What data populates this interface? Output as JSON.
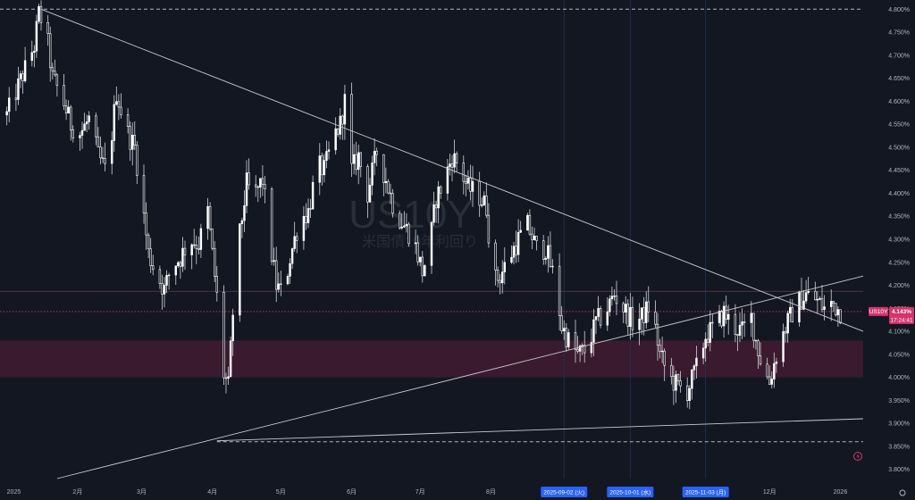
{
  "chart_data": {
    "type": "candlestick",
    "symbol": "US10Y",
    "name": "米国債10年利回り",
    "current_price": "4.143%",
    "countdown": "17:24:41",
    "y_axis": {
      "ylim": [
        3.78,
        4.82
      ],
      "ticks": [
        "4.800%",
        "4.750%",
        "4.700%",
        "4.650%",
        "4.600%",
        "4.550%",
        "4.500%",
        "4.450%",
        "4.400%",
        "4.350%",
        "4.300%",
        "4.250%",
        "4.200%",
        "4.150%",
        "4.100%",
        "4.050%",
        "4.000%",
        "3.950%",
        "3.900%",
        "3.850%",
        "3.800%"
      ]
    },
    "x_axis": {
      "labels": [
        {
          "label": "2025",
          "day": 0
        },
        {
          "label": "2月",
          "day": 31
        },
        {
          "label": "3月",
          "day": 59
        },
        {
          "label": "4月",
          "day": 90
        },
        {
          "label": "5月",
          "day": 120
        },
        {
          "label": "6月",
          "day": 151
        },
        {
          "label": "7月",
          "day": 181
        },
        {
          "label": "8月",
          "day": 212
        },
        {
          "label": "12月",
          "day": 334
        },
        {
          "label": "2026",
          "day": 365
        }
      ],
      "highlighted": [
        {
          "label": "2025-09-02 (火)",
          "day": 244
        },
        {
          "label": "2025-10-01 (水)",
          "day": 273
        },
        {
          "label": "2025-11-03 (月)",
          "day": 306
        }
      ]
    },
    "close_series": [
      [
        0,
        4.57
      ],
      [
        4,
        4.62
      ],
      [
        8,
        4.67
      ],
      [
        12,
        4.72
      ],
      [
        14,
        4.79
      ],
      [
        17,
        4.76
      ],
      [
        20,
        4.65
      ],
      [
        24,
        4.61
      ],
      [
        28,
        4.55
      ],
      [
        32,
        4.53
      ],
      [
        36,
        4.56
      ],
      [
        40,
        4.48
      ],
      [
        44,
        4.44
      ],
      [
        48,
        4.62
      ],
      [
        52,
        4.54
      ],
      [
        56,
        4.5
      ],
      [
        59,
        4.39
      ],
      [
        62,
        4.27
      ],
      [
        65,
        4.23
      ],
      [
        69,
        4.19
      ],
      [
        72,
        4.24
      ],
      [
        76,
        4.26
      ],
      [
        80,
        4.3
      ],
      [
        84,
        4.29
      ],
      [
        88,
        4.36
      ],
      [
        91,
        4.22
      ],
      [
        93,
        4.13
      ],
      [
        94,
        4.02
      ],
      [
        97,
        3.98
      ],
      [
        99,
        4.14
      ],
      [
        102,
        4.31
      ],
      [
        105,
        4.42
      ],
      [
        108,
        4.39
      ],
      [
        112,
        4.43
      ],
      [
        115,
        4.3
      ],
      [
        118,
        4.2
      ],
      [
        121,
        4.18
      ],
      [
        124,
        4.26
      ],
      [
        128,
        4.34
      ],
      [
        132,
        4.36
      ],
      [
        136,
        4.46
      ],
      [
        139,
        4.45
      ],
      [
        143,
        4.52
      ],
      [
        146,
        4.55
      ],
      [
        148,
        4.6
      ],
      [
        151,
        4.45
      ],
      [
        154,
        4.48
      ],
      [
        158,
        4.4
      ],
      [
        162,
        4.49
      ],
      [
        166,
        4.43
      ],
      [
        170,
        4.36
      ],
      [
        174,
        4.33
      ],
      [
        178,
        4.3
      ],
      [
        182,
        4.23
      ],
      [
        185,
        4.28
      ],
      [
        188,
        4.39
      ],
      [
        191,
        4.42
      ],
      [
        195,
        4.48
      ],
      [
        198,
        4.46
      ],
      [
        202,
        4.41
      ],
      [
        206,
        4.4
      ],
      [
        210,
        4.37
      ],
      [
        213,
        4.21
      ],
      [
        216,
        4.22
      ],
      [
        220,
        4.26
      ],
      [
        224,
        4.3
      ],
      [
        228,
        4.33
      ],
      [
        232,
        4.28
      ],
      [
        236,
        4.28
      ],
      [
        240,
        4.21
      ],
      [
        243,
        4.11
      ],
      [
        246,
        4.08
      ],
      [
        250,
        4.05
      ],
      [
        254,
        4.06
      ],
      [
        258,
        4.12
      ],
      [
        262,
        4.14
      ],
      [
        266,
        4.18
      ],
      [
        270,
        4.15
      ],
      [
        274,
        4.12
      ],
      [
        278,
        4.13
      ],
      [
        282,
        4.16
      ],
      [
        286,
        4.05
      ],
      [
        290,
        4.0
      ],
      [
        294,
        3.98
      ],
      [
        298,
        3.97
      ],
      [
        302,
        4.02
      ],
      [
        306,
        4.09
      ],
      [
        310,
        4.11
      ],
      [
        314,
        4.14
      ],
      [
        318,
        4.11
      ],
      [
        322,
        4.1
      ],
      [
        326,
        4.13
      ],
      [
        328,
        4.08
      ],
      [
        331,
        4.02
      ],
      [
        334,
        3.99
      ],
      [
        338,
        4.07
      ],
      [
        342,
        4.12
      ],
      [
        346,
        4.16
      ],
      [
        350,
        4.18
      ],
      [
        354,
        4.17
      ],
      [
        358,
        4.15
      ],
      [
        362,
        4.16
      ],
      [
        365,
        4.143
      ]
    ],
    "horizontal_levels": [
      {
        "y": 4.8,
        "style": "dashed",
        "color": "#b2b5be"
      },
      {
        "y": 4.187,
        "style": "solid",
        "color": "#6b3a52"
      },
      {
        "y": 4.143,
        "style": "dotted",
        "color": "#d6336c"
      },
      {
        "y": 3.86,
        "style": "dashed",
        "color": "#b2b5be"
      }
    ],
    "zone": {
      "y_top": 4.08,
      "y_bottom": 4.0,
      "color": "#3a1a2e"
    },
    "trendlines": [
      {
        "x1": 15,
        "y1": 4.8,
        "x2": 375,
        "y2": 4.1
      },
      {
        "x1": 22,
        "y1": 3.78,
        "x2": 375,
        "y2": 4.22
      },
      {
        "x1": 92,
        "y1": 3.862,
        "x2": 375,
        "y2": 3.91
      }
    ],
    "colors": {
      "background": "#131722",
      "candle_up": "#ffffff",
      "candle_down": "#ffffff",
      "current_price": "#d6336c",
      "highlight": "#2962ff"
    }
  }
}
